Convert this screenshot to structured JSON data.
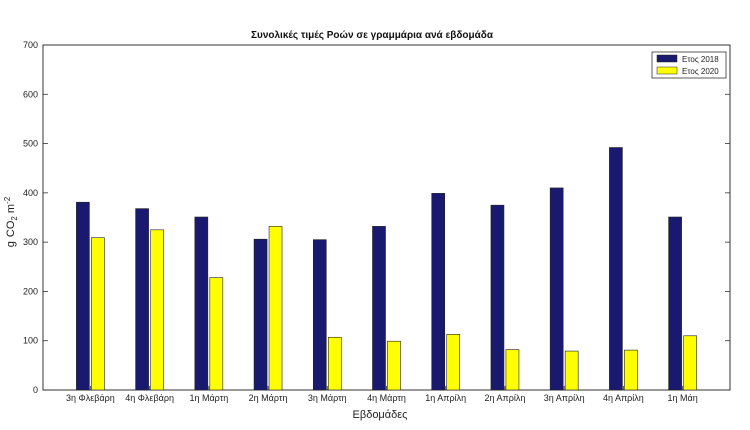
{
  "chart_data": {
    "type": "bar",
    "title": "Συνολικές τιμές Ροών σε γραμμάρια ανά εβδομάδα",
    "xlabel": "Εβδομάδες",
    "ylabel_parts": {
      "g": "g",
      "co": "CO",
      "co_sub": "2",
      "m": "m",
      "m_sup": "-2"
    },
    "ylim": [
      0,
      700
    ],
    "yticks": [
      "0",
      "100",
      "200",
      "300",
      "400",
      "500",
      "600",
      "700"
    ],
    "grid": false,
    "legend_position": "top-right",
    "categories": [
      "3η Φλεβάρη",
      "4η Φλεβάρη",
      "1η Μάρτη",
      "2η Μάρτη",
      "3η Μάρτη",
      "4η Μάρτη",
      "1η Απρίλη",
      "2η Απρίλη",
      "3η Απρίλη",
      "4η Απρίλη",
      "1η Μάη"
    ],
    "series": [
      {
        "name": "Ετος 2018",
        "color": "#191970",
        "values": [
          381,
          368,
          351,
          306,
          305,
          332,
          399,
          375,
          410,
          492,
          351
        ]
      },
      {
        "name": "Ετος 2020",
        "color": "#ffff00",
        "values": [
          309,
          325,
          228,
          332,
          107,
          99,
          113,
          82,
          79,
          81,
          110
        ]
      }
    ]
  }
}
